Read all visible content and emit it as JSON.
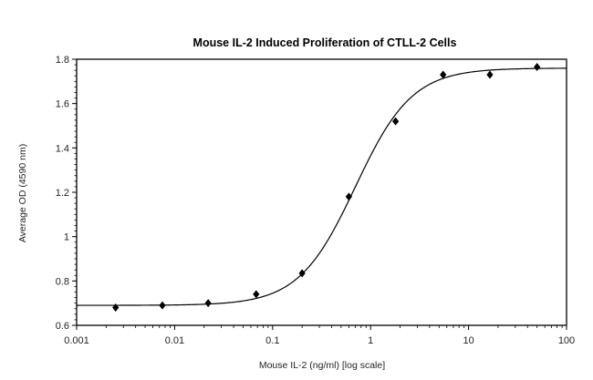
{
  "chart_data": {
    "type": "scatter",
    "title": "Mouse IL-2 Induced Proliferation of CTLL-2 Cells",
    "xlabel": "Mouse IL-2 (ng/ml) [log scale]",
    "ylabel": "Average OD (4590 nm)",
    "x_scale": "log",
    "xlim": [
      0.001,
      100
    ],
    "ylim": [
      0.6,
      1.8
    ],
    "x_ticks": [
      "0.001",
      "0.01",
      "0.1",
      "1",
      "10",
      "100"
    ],
    "y_ticks": [
      "0.6",
      "0.8",
      "1",
      "1.2",
      "1.4",
      "1.6",
      "1.8"
    ],
    "grid": false,
    "marker": "diamond",
    "color": "#000000",
    "x": [
      0.0025,
      0.0075,
      0.022,
      0.068,
      0.2,
      0.6,
      1.8,
      5.5,
      16.5,
      50
    ],
    "y": [
      0.68,
      0.69,
      0.7,
      0.74,
      0.835,
      1.18,
      1.52,
      1.73,
      1.73,
      1.765
    ],
    "fit": {
      "model": "4-parameter logistic",
      "bottom": 0.69,
      "top": 1.76,
      "ec50": 0.7,
      "hill": 1.5
    }
  }
}
